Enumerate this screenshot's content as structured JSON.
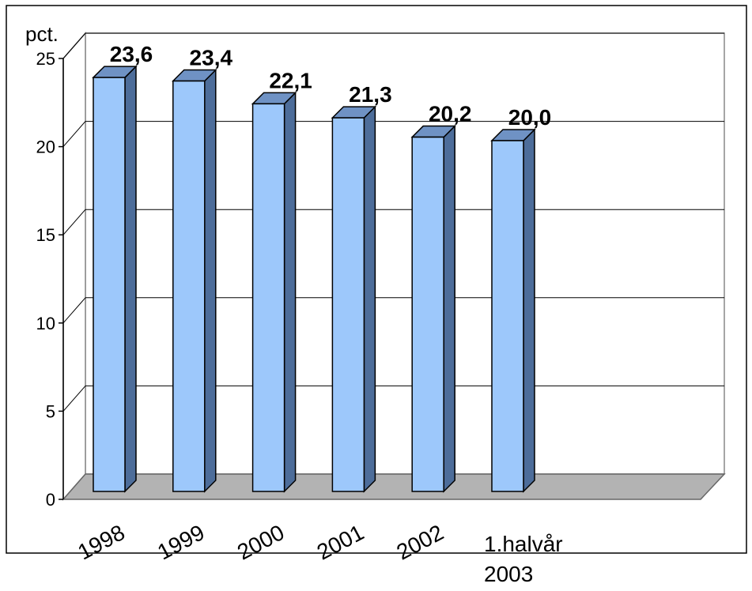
{
  "chart_data": {
    "type": "bar3d",
    "ylabel": "pct.",
    "categories": [
      "1998",
      "1999",
      "2000",
      "2001",
      "2002",
      "1.halvår 2003"
    ],
    "values": [
      23.6,
      23.4,
      22.1,
      21.3,
      20.2,
      20.0
    ],
    "value_labels": [
      "23,6",
      "23,4",
      "22,1",
      "21,3",
      "20,2",
      "20,0"
    ],
    "color": "#9dc8fb",
    "ylim": [
      0,
      25
    ],
    "yticks": [
      0,
      5,
      10,
      15,
      20,
      25
    ],
    "grid": true
  }
}
